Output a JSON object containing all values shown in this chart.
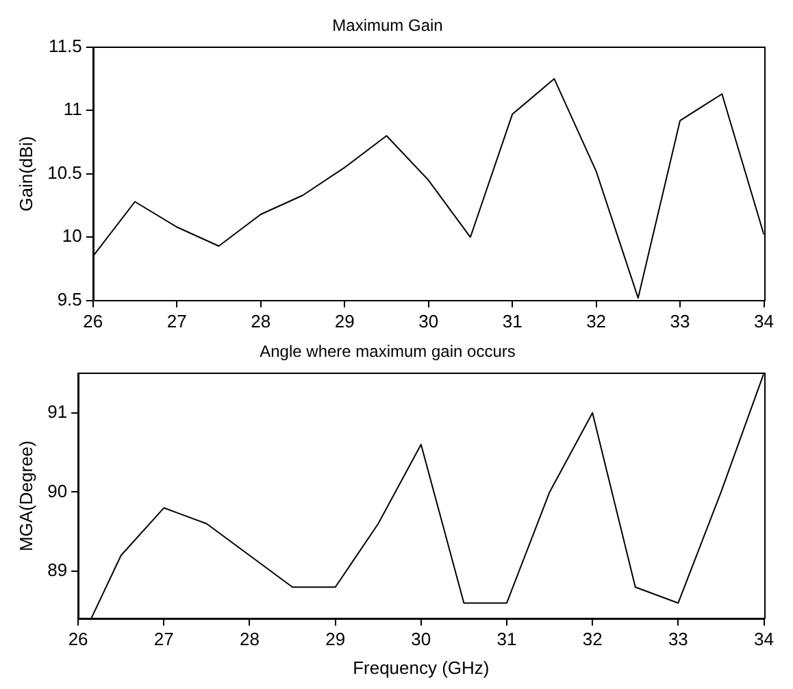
{
  "chart_data": [
    {
      "type": "line",
      "title": "Maximum Gain",
      "ylabel": "Gain(dBi)",
      "x": [
        26,
        26.5,
        27,
        27.5,
        28,
        28.5,
        29,
        29.5,
        30,
        30.5,
        31,
        31.5,
        32,
        32.5,
        33,
        33.5,
        34
      ],
      "series": [
        {
          "color": "#000000",
          "values": [
            9.85,
            10.28,
            10.08,
            9.93,
            10.18,
            10.33,
            10.55,
            10.8,
            10.45,
            10.0,
            10.97,
            11.25,
            10.52,
            9.52,
            10.92,
            11.13,
            10.02
          ]
        }
      ],
      "xlim": [
        26,
        34
      ],
      "xticks": [
        26,
        27,
        28,
        29,
        30,
        31,
        32,
        33,
        34
      ],
      "ylim": [
        9.5,
        11.5
      ],
      "yticks": [
        9.5,
        10,
        10.5,
        11,
        11.5
      ]
    },
    {
      "type": "line",
      "title": "Angle where maximum gain occurs",
      "xlabel": "Frequency (GHz)",
      "ylabel": "MGA(Degree)",
      "x": [
        26.15,
        26.5,
        27,
        27.5,
        28,
        28.5,
        29,
        29.5,
        30,
        30.5,
        31,
        31.5,
        32,
        32.5,
        33,
        33.5,
        34
      ],
      "series": [
        {
          "color": "#000000",
          "values": [
            88.4,
            89.2,
            89.8,
            89.6,
            89.2,
            88.8,
            88.8,
            89.6,
            90.6,
            88.6,
            88.6,
            90.0,
            91.0,
            88.8,
            88.6,
            90.0,
            91.5
          ]
        }
      ],
      "xlim": [
        26,
        34
      ],
      "xticks": [
        26,
        27,
        28,
        29,
        30,
        31,
        32,
        33,
        34
      ],
      "ylim": [
        88.4,
        91.5
      ],
      "yticks": [
        89,
        90,
        91
      ]
    }
  ]
}
